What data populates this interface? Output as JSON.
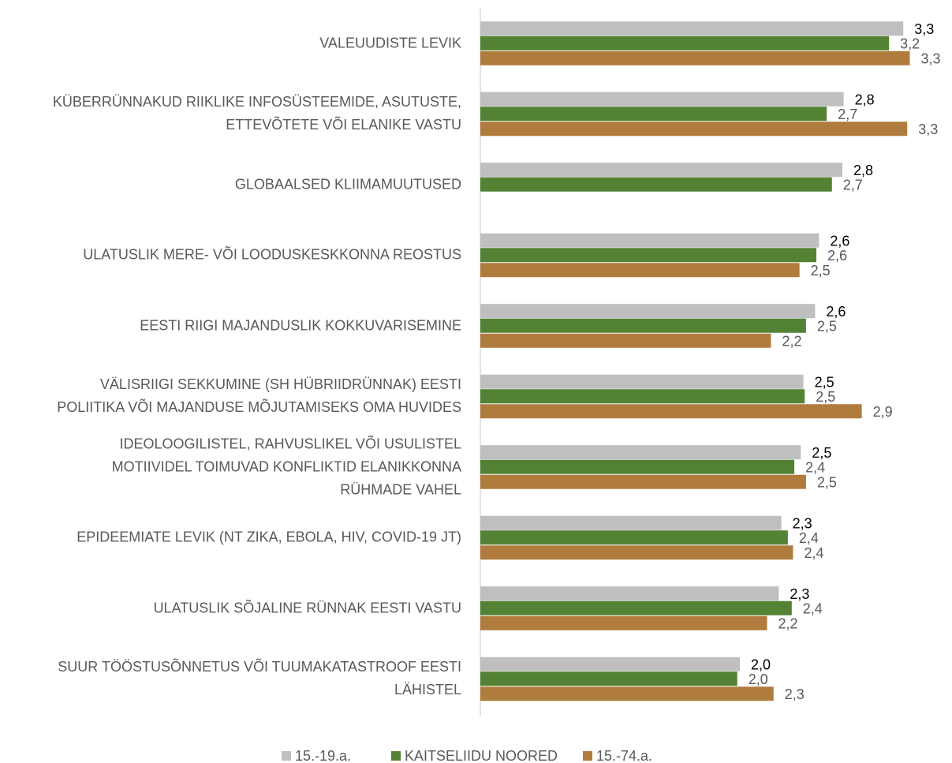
{
  "chart_data": {
    "type": "barh",
    "categories": [
      "VALEUUDISTE LEVIK",
      "KÜBERRÜNNAKUD RIIKLIKE INFOSÜSTEEMIDE, ASUTUSTE,\nETTEVÕTETE VÕI ELANIKE VASTU",
      "GLOBAALSED KLIIMAMUUTUSED",
      "ULATUSLIK MERE- VÕI LOODUSKESKKONNA REOSTUS",
      "EESTI RIIGI MAJANDUSLIK KOKKUVARISEMINE",
      "VÄLISRIIGI SEKKUMINE (SH HÜBRIIDRÜNNAK) EESTI\nPOLIITIKA VÕI MAJANDUSE MÕJUTAMISEKS OMA HUVIDES",
      "IDEOLOOGILISTEL, RAHVUSLIKEL VÕI USULISTEL\nMOTIIVIDEL TOIMUVAD KONFLIKTID ELANIKKONNA\nRÜHMADE VAHEL",
      "EPIDEEMIATE LEVIK (NT ZIKA, EBOLA, HIV, COVID-19 JT)",
      "ULATUSLIK SÕJALINE RÜNNAK EESTI VASTU",
      "SUUR TÖÖSTUSÕNNETUS VÕI TUUMAKATASTROOF EESTI\nLÄHISTEL"
    ],
    "series": [
      {
        "name": "15.-19.a.",
        "color": "#bfbfbf",
        "label_color": "#000000",
        "values": [
          3.26,
          2.8,
          2.79,
          2.61,
          2.58,
          2.49,
          2.47,
          2.32,
          2.3,
          2.0
        ],
        "value_labels": [
          "3,3",
          "2,8",
          "2,8",
          "2,6",
          "2,6",
          "2,5",
          "2,5",
          "2,3",
          "2,3",
          "2,0"
        ]
      },
      {
        "name": "KAITSELIIDU NOORED",
        "color": "#548235",
        "label_color": "#595959",
        "values": [
          3.15,
          2.67,
          2.71,
          2.59,
          2.51,
          2.5,
          2.42,
          2.37,
          2.4,
          1.98
        ],
        "value_labels": [
          "3,2",
          "2,7",
          "2,7",
          "2,6",
          "2,5",
          "2,5",
          "2,4",
          "2,4",
          "2,4",
          "2,0"
        ]
      },
      {
        "name": "15.-74.a.",
        "color": "#b07c3e",
        "label_color": "#595959",
        "values": [
          3.31,
          3.29,
          null,
          2.46,
          2.24,
          2.94,
          2.51,
          2.41,
          2.21,
          2.26
        ],
        "value_labels": [
          "3,3",
          "3,3",
          null,
          "2,5",
          "2,2",
          "2,9",
          "2,5",
          "2,4",
          "2,2",
          "2,3"
        ]
      }
    ],
    "xlim": [
      0,
      3.6
    ],
    "legend": "bottom"
  }
}
